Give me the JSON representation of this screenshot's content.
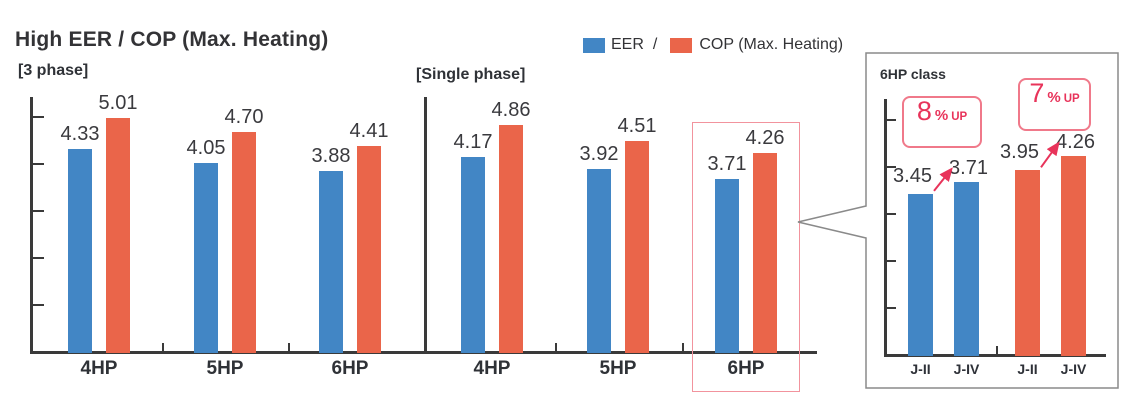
{
  "title": "High EER / COP (Max. Heating)",
  "legend": {
    "eer_label": "EER",
    "separator": "/",
    "cop_label": "COP (Max. Heating)"
  },
  "colors": {
    "eer_blue": "#4286C5",
    "cop_orange": "#EA654A",
    "axis_dark": "#3A3A3A",
    "accent_red": "#E8335A",
    "highlight_border": "#F2939D",
    "annotation_border": "#F0798A",
    "inset_border": "#8A8A8A",
    "callout_line": "#666666"
  },
  "chart_data": [
    {
      "type": "bar",
      "panel_label": "[3 phase]",
      "categories": [
        "4HP",
        "5HP",
        "6HP"
      ],
      "series": [
        {
          "name": "EER",
          "color_key": "eer_blue",
          "values": [
            4.33,
            4.05,
            3.88
          ]
        },
        {
          "name": "COP (Max. Heating)",
          "color_key": "cop_orange",
          "values": [
            5.01,
            4.7,
            4.41
          ]
        }
      ],
      "ylim": [
        0,
        5.4
      ],
      "yticks": [
        1,
        2,
        3,
        4,
        5
      ],
      "ytick_labels_shown": false,
      "grid": false
    },
    {
      "type": "bar",
      "panel_label": "[Single phase]",
      "categories": [
        "4HP",
        "5HP",
        "6HP"
      ],
      "series": [
        {
          "name": "EER",
          "color_key": "eer_blue",
          "values": [
            4.17,
            3.92,
            3.71
          ]
        },
        {
          "name": "COP (Max. Heating)",
          "color_key": "cop_orange",
          "values": [
            4.86,
            4.51,
            4.26
          ]
        }
      ],
      "ylim": [
        0,
        5.4
      ],
      "yticks": [
        1,
        2,
        3,
        4,
        5
      ],
      "ytick_labels_shown": false,
      "grid": false,
      "highlight_category": "6HP"
    },
    {
      "type": "bar",
      "title": "6HP class",
      "groups": [
        {
          "series": "EER",
          "color_key": "eer_blue",
          "categories": [
            "J-II",
            "J-IV"
          ],
          "values": [
            3.45,
            3.71
          ],
          "annotation": {
            "value": "8",
            "unit": "%",
            "suffix": "UP"
          }
        },
        {
          "series": "COP (Max. Heating)",
          "color_key": "cop_orange",
          "categories": [
            "J-II",
            "J-IV"
          ],
          "values": [
            3.95,
            4.26
          ],
          "annotation": {
            "value": "7",
            "unit": "%",
            "suffix": "UP"
          }
        }
      ],
      "ylim": [
        0,
        5.4
      ],
      "yticks": [
        1,
        2,
        3,
        4,
        5
      ],
      "ytick_labels_shown": false,
      "grid": false
    }
  ]
}
